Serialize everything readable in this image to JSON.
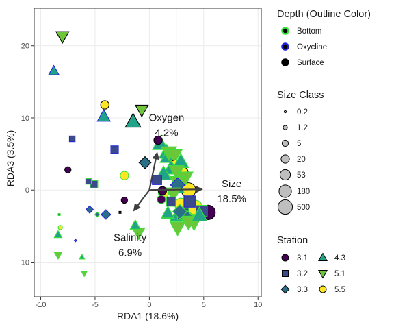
{
  "chart_data": {
    "type": "scatter",
    "xlabel": "RDA1 (18.6%)",
    "ylabel": "RDA3 (3.5%)",
    "xlim": [
      -10.6,
      10.3
    ],
    "ylim": [
      -14.8,
      25.2
    ],
    "xticks": [
      -10,
      -5,
      0,
      5,
      10
    ],
    "yticks": [
      -10,
      0,
      10,
      20
    ],
    "xtick_labels": [
      "-10",
      "-5",
      "0",
      "5",
      "10"
    ],
    "ytick_labels": [
      "-10",
      "0",
      "10",
      "20"
    ],
    "grid": true,
    "legend_position": "right",
    "vectors": [
      {
        "name": "Oxygen",
        "value": "4.2%",
        "x": 0.7,
        "y": 5.1
      },
      {
        "name": "Salinity",
        "value": "6.9%",
        "x": -1.4,
        "y": -2.8
      },
      {
        "name": "Size",
        "value": "18.5%",
        "x": 4.8,
        "y": 0.1
      }
    ],
    "legends": {
      "depth": {
        "title": "Depth (Outline Color)",
        "items": [
          {
            "label": "Bottom",
            "color": "#39e23a"
          },
          {
            "label": "Oxycline",
            "color": "#1f23d6"
          },
          {
            "label": "Surface",
            "color": "#000000"
          }
        ]
      },
      "size_class": {
        "title": "Size Class",
        "items": [
          "0.2",
          "1.2",
          "5",
          "20",
          "53",
          "180",
          "500"
        ]
      },
      "station": {
        "title": "Station",
        "items": [
          {
            "label": "3.1",
            "shape": "circle",
            "color": "#440154"
          },
          {
            "label": "3.2",
            "shape": "square",
            "color": "#3b4a8a"
          },
          {
            "label": "3.3",
            "shape": "diamond",
            "color": "#2a6f87"
          },
          {
            "label": "4.3",
            "shape": "triangle-up",
            "color": "#21a38a"
          },
          {
            "label": "5.1",
            "shape": "triangle-down",
            "color": "#6dc53a"
          },
          {
            "label": "5.5",
            "shape": "circle",
            "color": "#fde725"
          }
        ]
      }
    },
    "points": [
      {
        "x": -8,
        "y": 21.3,
        "station": "5.1",
        "depth": "Surface",
        "size": "53"
      },
      {
        "x": -8.8,
        "y": 16.5,
        "station": "4.3",
        "depth": "Oxycline",
        "size": "20"
      },
      {
        "x": -4.1,
        "y": 11.8,
        "station": "5.5",
        "depth": "Surface",
        "size": "20"
      },
      {
        "x": -4.2,
        "y": 10.2,
        "station": "4.3",
        "depth": "Oxycline",
        "size": "53"
      },
      {
        "x": -1.5,
        "y": 9.5,
        "station": "4.3",
        "depth": "Surface",
        "size": "180"
      },
      {
        "x": -0.7,
        "y": 11.1,
        "station": "5.1",
        "depth": "Surface",
        "size": "53"
      },
      {
        "x": -7.1,
        "y": 7.1,
        "station": "3.2",
        "depth": "Oxycline",
        "size": "5"
      },
      {
        "x": -3.2,
        "y": 5.6,
        "station": "3.2",
        "depth": "Oxycline",
        "size": "20"
      },
      {
        "x": 0.8,
        "y": 6.9,
        "station": "3.1",
        "depth": "Surface",
        "size": "20"
      },
      {
        "x": -0.4,
        "y": 3.8,
        "station": "3.3",
        "depth": "Surface",
        "size": "53"
      },
      {
        "x": -7.5,
        "y": 2.8,
        "station": "3.1",
        "depth": "Surface",
        "size": "5"
      },
      {
        "x": -2.3,
        "y": 2.0,
        "station": "5.5",
        "depth": "Bottom",
        "size": "20"
      },
      {
        "x": -5.6,
        "y": 1.2,
        "station": "3.2",
        "depth": "Bottom",
        "size": "5"
      },
      {
        "x": -5.1,
        "y": 0.8,
        "station": "3.2",
        "depth": "Bottom",
        "size": "20"
      },
      {
        "x": -2.3,
        "y": -1.4,
        "station": "3.1",
        "depth": "Surface",
        "size": "5"
      },
      {
        "x": -5.5,
        "y": -2.7,
        "station": "3.3",
        "depth": "Oxycline",
        "size": "5"
      },
      {
        "x": -4.8,
        "y": -3.4,
        "station": "3.3",
        "depth": "Bottom",
        "size": "1.2"
      },
      {
        "x": -4,
        "y": -3.4,
        "station": "3.3",
        "depth": "Oxycline",
        "size": "20"
      },
      {
        "x": -8.3,
        "y": -3.4,
        "station": "3.2",
        "depth": "Bottom",
        "size": "0.2"
      },
      {
        "x": -2.7,
        "y": -3.1,
        "station": "3.2",
        "depth": "Surface",
        "size": "0.2"
      },
      {
        "x": -8.2,
        "y": -5.2,
        "station": "5.5",
        "depth": "Bottom",
        "size": "1.2"
      },
      {
        "x": -8.4,
        "y": -6.2,
        "station": "4.3",
        "depth": "Bottom",
        "size": "5"
      },
      {
        "x": -6.8,
        "y": -7.0,
        "station": "3.3",
        "depth": "Oxycline",
        "size": "0.2"
      },
      {
        "x": -8.4,
        "y": -9.0,
        "station": "5.1",
        "depth": "Bottom",
        "size": "5"
      },
      {
        "x": -6.2,
        "y": -9.3,
        "station": "4.3",
        "depth": "Bottom",
        "size": "1.2"
      },
      {
        "x": -6,
        "y": -11.6,
        "station": "5.1",
        "depth": "Bottom",
        "size": "1.2"
      },
      {
        "x": -1.3,
        "y": -4.9,
        "station": "4.3",
        "depth": "Bottom",
        "size": "20"
      },
      {
        "x": 1.0,
        "y": 6.4,
        "station": "4.3",
        "depth": "Bottom",
        "size": "180"
      },
      {
        "x": 1.6,
        "y": 5.2,
        "station": "4.3",
        "depth": "Bottom",
        "size": "180"
      },
      {
        "x": 1.7,
        "y": 4.6,
        "station": "4.3",
        "depth": "Bottom",
        "size": "180"
      },
      {
        "x": 1.8,
        "y": 5.2,
        "station": "5.1",
        "depth": "Bottom",
        "size": "180"
      },
      {
        "x": 2.3,
        "y": 4.8,
        "station": "5.1",
        "depth": "Bottom",
        "size": "180"
      },
      {
        "x": 2.4,
        "y": 3.3,
        "station": "5.5",
        "depth": "Surface",
        "size": "180"
      },
      {
        "x": 3.0,
        "y": 2.4,
        "station": "5.5",
        "depth": "Surface",
        "size": "180"
      },
      {
        "x": 2.0,
        "y": 3.0,
        "station": "4.3",
        "depth": "Bottom",
        "size": "180"
      },
      {
        "x": 2.9,
        "y": 3.9,
        "station": "4.3",
        "depth": "Bottom",
        "size": "180"
      },
      {
        "x": 1.3,
        "y": 2.2,
        "station": "4.3",
        "depth": "Bottom",
        "size": "180"
      },
      {
        "x": 2.5,
        "y": 2.6,
        "station": "5.1",
        "depth": "Bottom",
        "size": "180"
      },
      {
        "x": 3.3,
        "y": 1.7,
        "station": "5.1",
        "depth": "Bottom",
        "size": "180"
      },
      {
        "x": 0.7,
        "y": 1.4,
        "station": "3.2",
        "depth": "Oxycline",
        "size": "53"
      },
      {
        "x": 2.6,
        "y": 1.1,
        "station": "5.1",
        "depth": "Bottom",
        "size": "180"
      },
      {
        "x": 2.5,
        "y": 0.4,
        "station": "4.3",
        "depth": "Bottom",
        "size": "180"
      },
      {
        "x": 3.6,
        "y": 0.0,
        "station": "5.5",
        "depth": "Surface",
        "size": "500"
      },
      {
        "x": 2.6,
        "y": 0.7,
        "station": "3.3",
        "depth": "Oxycline",
        "size": "180"
      },
      {
        "x": 1.3,
        "y": -0.4,
        "station": "5.5",
        "depth": "Bottom",
        "size": "53"
      },
      {
        "x": 1.1,
        "y": -1.3,
        "station": "3.1",
        "depth": "Bottom",
        "size": "20"
      },
      {
        "x": 2.0,
        "y": -1.6,
        "station": "3.2",
        "depth": "Bottom",
        "size": "53"
      },
      {
        "x": 2.2,
        "y": -0.5,
        "station": "5.1",
        "depth": "Bottom",
        "size": "180"
      },
      {
        "x": 1.7,
        "y": -3.3,
        "station": "4.3",
        "depth": "Bottom",
        "size": "53"
      },
      {
        "x": 2.9,
        "y": -2.0,
        "station": "5.5",
        "depth": "Bottom",
        "size": "180"
      },
      {
        "x": 3.7,
        "y": -1.6,
        "station": "3.2",
        "depth": "Oxycline",
        "size": "180"
      },
      {
        "x": 4.2,
        "y": -2.4,
        "station": "5.5",
        "depth": "Bottom",
        "size": "500"
      },
      {
        "x": 2.6,
        "y": -3.5,
        "station": "4.3",
        "depth": "Bottom",
        "size": "180"
      },
      {
        "x": 3.1,
        "y": -3.3,
        "station": "3.2",
        "depth": "Bottom",
        "size": "180"
      },
      {
        "x": 3.5,
        "y": -3.9,
        "station": "3.3",
        "depth": "Bottom",
        "size": "180"
      },
      {
        "x": 4.1,
        "y": -4.3,
        "station": "5.1",
        "depth": "Bottom",
        "size": "500"
      },
      {
        "x": 3.6,
        "y": -4.4,
        "station": "5.1",
        "depth": "Bottom",
        "size": "180"
      },
      {
        "x": 5.4,
        "y": -3.1,
        "station": "3.1",
        "depth": "Surface",
        "size": "500"
      },
      {
        "x": 4.8,
        "y": -2.9,
        "station": "3.2",
        "depth": "Bottom",
        "size": "180"
      },
      {
        "x": 4.6,
        "y": -3.5,
        "station": "4.3",
        "depth": "Bottom",
        "size": "180"
      },
      {
        "x": 2.8,
        "y": -3.0,
        "station": "3.3",
        "depth": "Bottom",
        "size": "180"
      },
      {
        "x": 2.6,
        "y": -5.2,
        "station": "5.1",
        "depth": "Bottom",
        "size": "180"
      },
      {
        "x": 1.7,
        "y": -3.2,
        "station": "4.3",
        "depth": "Bottom",
        "size": "53"
      },
      {
        "x": 1.2,
        "y": -0.1,
        "station": "3.1",
        "depth": "Surface",
        "size": "20"
      },
      {
        "x": -1.0,
        "y": -5.9,
        "station": "5.1",
        "depth": "Bottom",
        "size": "53"
      }
    ]
  }
}
